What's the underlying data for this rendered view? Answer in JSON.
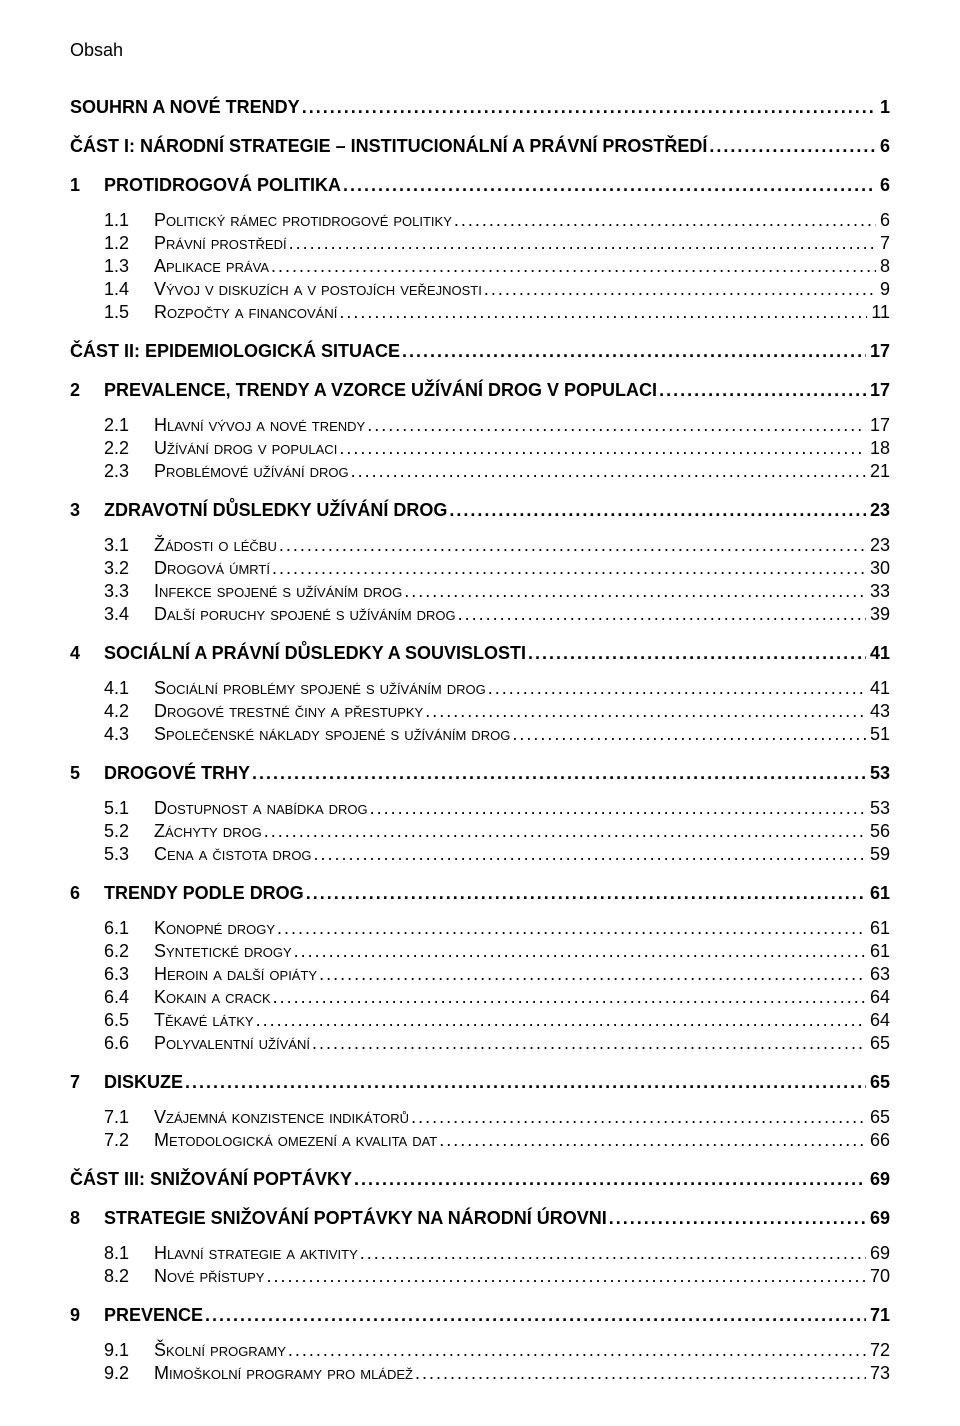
{
  "page_title": "Obsah",
  "colors": {
    "text": "#000000",
    "background": "#ffffff"
  },
  "typography": {
    "font_family": "Arial",
    "title_size_pt": 14,
    "lvl1_size_pt": 14,
    "lvl2_size_pt": 14
  },
  "toc": [
    {
      "level": 1,
      "num": "",
      "text": "SOUHRN A NOVÉ TRENDY",
      "page": "1"
    },
    {
      "level": 1,
      "num": "",
      "text": "ČÁST I: NÁRODNÍ STRATEGIE – INSTITUCIONÁLNÍ A PRÁVNÍ PROSTŘEDÍ",
      "page": "6"
    },
    {
      "level": 1,
      "num": "1",
      "text": "PROTIDROGOVÁ POLITIKA",
      "page": "6"
    },
    {
      "level": 2,
      "num": "1.1",
      "text": "Politický rámec protidrogové politiky",
      "page": "6"
    },
    {
      "level": 2,
      "num": "1.2",
      "text": "Právní prostředí",
      "page": "7"
    },
    {
      "level": 2,
      "num": "1.3",
      "text": "Aplikace práva",
      "page": "8"
    },
    {
      "level": 2,
      "num": "1.4",
      "text": "Vývoj v diskuzích a v postojích veřejnosti",
      "page": "9"
    },
    {
      "level": 2,
      "num": "1.5",
      "text": "Rozpočty a financování",
      "page": "11"
    },
    {
      "level": 1,
      "num": "",
      "text": "ČÁST II: EPIDEMIOLOGICKÁ SITUACE",
      "page": "17"
    },
    {
      "level": 1,
      "num": "2",
      "text": "PREVALENCE, TRENDY A VZORCE UŽÍVÁNÍ DROG V POPULACI",
      "page": "17"
    },
    {
      "level": 2,
      "num": "2.1",
      "text": "Hlavní vývoj a nové trendy",
      "page": "17"
    },
    {
      "level": 2,
      "num": "2.2",
      "text": "Užívání drog v populaci",
      "page": "18"
    },
    {
      "level": 2,
      "num": "2.3",
      "text": "Problémové užívání drog",
      "page": "21"
    },
    {
      "level": 1,
      "num": "3",
      "text": "ZDRAVOTNÍ DŮSLEDKY UŽÍVÁNÍ DROG",
      "page": "23"
    },
    {
      "level": 2,
      "num": "3.1",
      "text": "Žádosti o léčbu",
      "page": "23"
    },
    {
      "level": 2,
      "num": "3.2",
      "text": "Drogová úmrtí",
      "page": "30"
    },
    {
      "level": 2,
      "num": "3.3",
      "text": "Infekce spojené s užíváním drog",
      "page": "33"
    },
    {
      "level": 2,
      "num": "3.4",
      "text": "Další poruchy spojené s užíváním drog",
      "page": "39"
    },
    {
      "level": 1,
      "num": "4",
      "text": "SOCIÁLNÍ A PRÁVNÍ DŮSLEDKY A SOUVISLOSTI",
      "page": "41"
    },
    {
      "level": 2,
      "num": "4.1",
      "text": "Sociální problémy spojené s užíváním drog",
      "page": "41"
    },
    {
      "level": 2,
      "num": "4.2",
      "text": "Drogové trestné činy a přestupky",
      "page": "43"
    },
    {
      "level": 2,
      "num": "4.3",
      "text": "Společenské náklady spojené s užíváním drog",
      "page": "51"
    },
    {
      "level": 1,
      "num": "5",
      "text": "DROGOVÉ TRHY",
      "page": "53"
    },
    {
      "level": 2,
      "num": "5.1",
      "text": "Dostupnost a nabídka drog",
      "page": "53"
    },
    {
      "level": 2,
      "num": "5.2",
      "text": "Záchyty drog",
      "page": "56"
    },
    {
      "level": 2,
      "num": "5.3",
      "text": "Cena a čistota drog",
      "page": "59"
    },
    {
      "level": 1,
      "num": "6",
      "text": "TRENDY PODLE DROG",
      "page": "61"
    },
    {
      "level": 2,
      "num": "6.1",
      "text": "Konopné drogy",
      "page": "61"
    },
    {
      "level": 2,
      "num": "6.2",
      "text": "Syntetické drogy",
      "page": "61"
    },
    {
      "level": 2,
      "num": "6.3",
      "text": "Heroin a další opiáty",
      "page": "63"
    },
    {
      "level": 2,
      "num": "6.4",
      "text": "Kokain a crack",
      "page": "64"
    },
    {
      "level": 2,
      "num": "6.5",
      "text": "Těkavé látky",
      "page": "64"
    },
    {
      "level": 2,
      "num": "6.6",
      "text": "Polyvalentní užívání",
      "page": "65"
    },
    {
      "level": 1,
      "num": "7",
      "text": "DISKUZE",
      "page": "65"
    },
    {
      "level": 2,
      "num": "7.1",
      "text": "Vzájemná konzistence indikátorů",
      "page": "65"
    },
    {
      "level": 2,
      "num": "7.2",
      "text": "Metodologická omezení a kvalita dat",
      "page": "66"
    },
    {
      "level": 1,
      "num": "",
      "text": "ČÁST III: SNIŽOVÁNÍ POPTÁVKY",
      "page": "69"
    },
    {
      "level": 1,
      "num": "8",
      "text": "STRATEGIE SNIŽOVÁNÍ POPTÁVKY NA NÁRODNÍ ÚROVNI",
      "page": "69"
    },
    {
      "level": 2,
      "num": "8.1",
      "text": "Hlavní strategie a aktivity",
      "page": "69"
    },
    {
      "level": 2,
      "num": "8.2",
      "text": "Nové přístupy",
      "page": "70"
    },
    {
      "level": 1,
      "num": "9",
      "text": "PREVENCE",
      "page": "71"
    },
    {
      "level": 2,
      "num": "9.1",
      "text": "Školní programy",
      "page": "72"
    },
    {
      "level": 2,
      "num": "9.2",
      "text": "Mimoškolní programy pro mládež",
      "page": "73"
    }
  ]
}
